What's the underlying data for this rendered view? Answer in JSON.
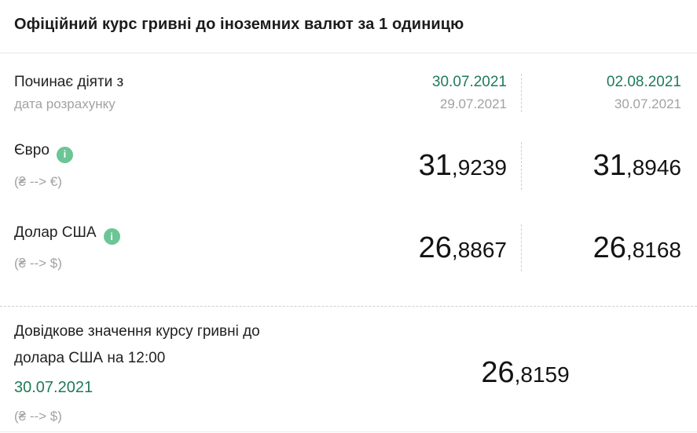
{
  "title": "Офіційний курс гривні до іноземних валют за 1 одиницю",
  "colors": {
    "green_date": "#1f7b57",
    "info_icon_bg": "#6cc595",
    "muted_text": "#a2a2a2",
    "value_text": "#131313",
    "dashed_divider": "#cfcfcf"
  },
  "icons": {
    "info": "i"
  },
  "header_row": {
    "label": "Починає діяти з",
    "sublabel": "дата розрахунку",
    "col1": {
      "effective_date": "30.07.2021",
      "calc_date": "29.07.2021"
    },
    "col2": {
      "effective_date": "02.08.2021",
      "calc_date": "30.07.2021"
    }
  },
  "rates": [
    {
      "name": "Євро",
      "pair": "(₴ --> €)",
      "col1": {
        "int": "31",
        "dec": ",9239"
      },
      "col2": {
        "int": "31",
        "dec": ",8946"
      }
    },
    {
      "name": "Долар США",
      "pair": "(₴ --> $)",
      "col1": {
        "int": "26",
        "dec": ",8867"
      },
      "col2": {
        "int": "26",
        "dec": ",8168"
      }
    }
  ],
  "reference": {
    "label_line1": "Довідкове значення курсу гривні до",
    "label_line2": "долара США на 12:00",
    "date": "30.07.2021",
    "pair": "(₴ --> $)",
    "value": {
      "int": "26",
      "dec": ",8159"
    }
  }
}
